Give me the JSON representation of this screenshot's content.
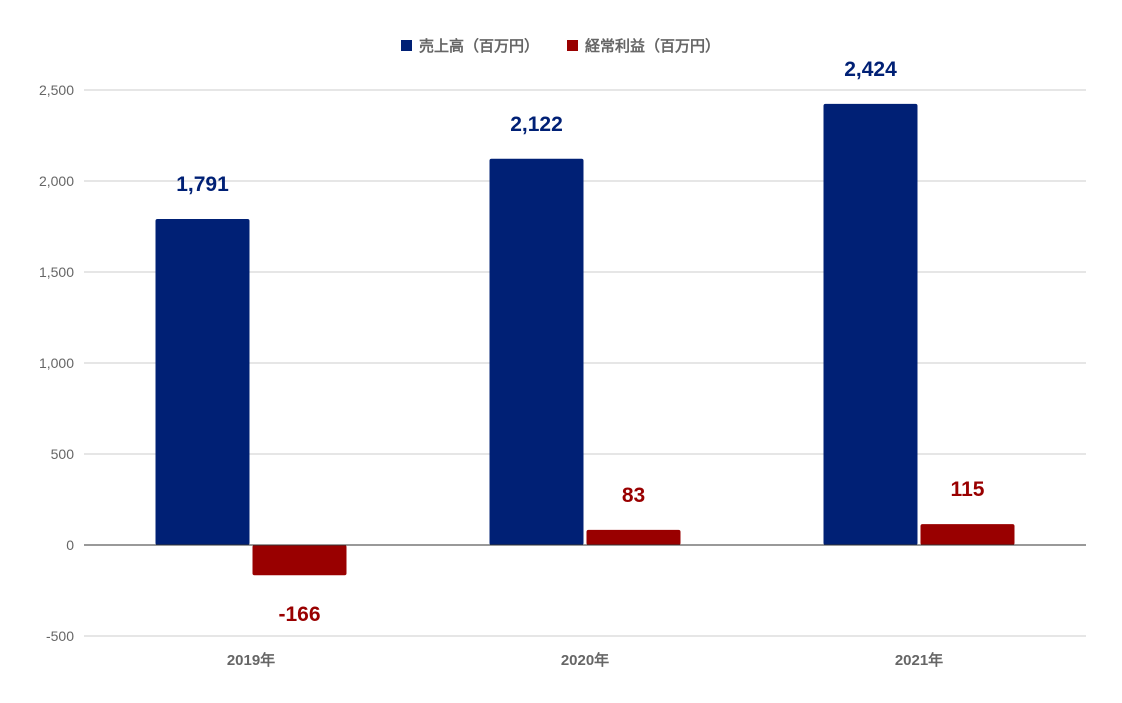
{
  "chart_data": {
    "type": "bar",
    "title": "",
    "xlabel": "",
    "ylabel": "",
    "categories": [
      "2019年",
      "2020年",
      "2021年"
    ],
    "series": [
      {
        "name": "売上高（百万円）",
        "color": "#002075",
        "values": [
          1791,
          2122,
          2424
        ],
        "value_labels": [
          "1,791",
          "2,122",
          "2,424"
        ]
      },
      {
        "name": "経常利益（百万円）",
        "color": "#990000",
        "values": [
          -166,
          83,
          115
        ],
        "value_labels": [
          "-166",
          "83",
          "115"
        ]
      }
    ],
    "ylim": [
      -500,
      2500
    ],
    "yticks": [
      -500,
      0,
      500,
      1000,
      1500,
      2000,
      2500
    ],
    "ytick_labels": [
      "-500",
      "0",
      "500",
      "1,000",
      "1,500",
      "2,000",
      "2,500"
    ],
    "grid": true,
    "legend_position": "top"
  }
}
